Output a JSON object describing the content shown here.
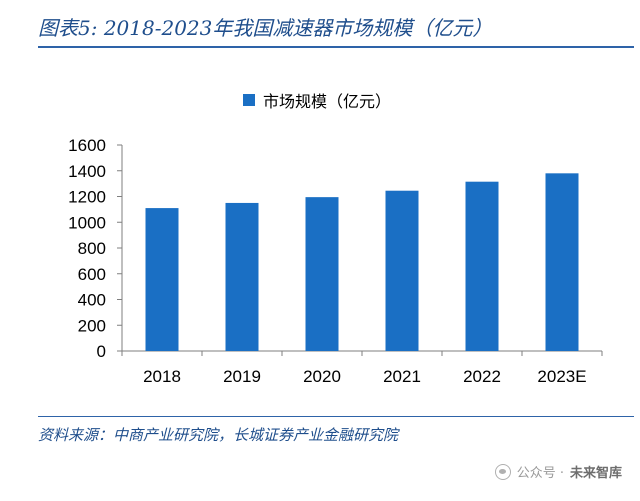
{
  "figure": {
    "title": "图表5:  2018-2023年我国减速器市场规模（亿元）",
    "source": "资料来源：中商产业研究院，长城证券产业金融研究院"
  },
  "watermark": {
    "prefix": "公众号 · ",
    "name": "未来智库"
  },
  "colors": {
    "bar": "#1a6fc4",
    "title": "#1f4e8c",
    "rule": "#2e63a8"
  },
  "chart_data": {
    "type": "bar",
    "categories": [
      "2018",
      "2019",
      "2020",
      "2021",
      "2022",
      "2023E"
    ],
    "series": [
      {
        "name": "市场规模（亿元）",
        "values": [
          1110,
          1150,
          1195,
          1245,
          1315,
          1380
        ]
      }
    ],
    "ylim": [
      0,
      1600
    ],
    "yticks": [
      "0",
      "200",
      "400",
      "600",
      "800",
      "1000",
      "1200",
      "1400",
      "1600"
    ],
    "xlabel": "",
    "ylabel": "",
    "legend_position": "top-center",
    "grid": false
  }
}
